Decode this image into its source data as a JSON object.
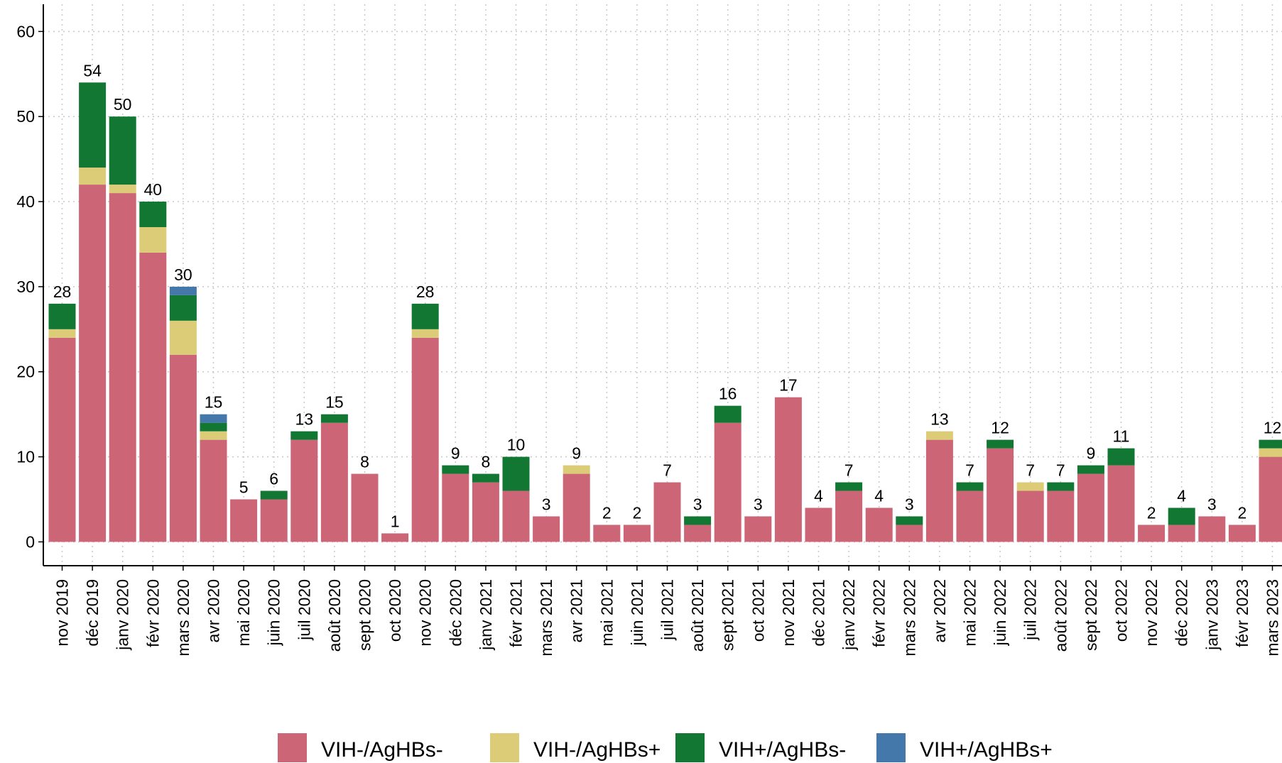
{
  "chart_data": {
    "type": "stacked_bar",
    "categories": [
      "nov 2019",
      "déc 2019",
      "janv 2020",
      "févr 2020",
      "mars 2020",
      "avr 2020",
      "mai 2020",
      "juin 2020",
      "juil 2020",
      "août 2020",
      "sept 2020",
      "oct 2020",
      "nov 2020",
      "déc 2020",
      "janv 2021",
      "févr 2021",
      "mars 2021",
      "avr 2021",
      "mai 2021",
      "juin 2021",
      "juil 2021",
      "août 2021",
      "sept 2021",
      "oct 2021",
      "nov 2021",
      "déc 2021",
      "janv 2022",
      "févr 2022",
      "mars 2022",
      "avr 2022",
      "mai 2022",
      "juin 2022",
      "juil 2022",
      "août 2022",
      "sept 2022",
      "oct 2022",
      "nov 2022",
      "déc 2022",
      "janv 2023",
      "févr 2023",
      "mars 2023"
    ],
    "series": [
      {
        "name": "VIH-/AgHBs-",
        "color": "#cc6677",
        "values": [
          24,
          42,
          41,
          34,
          22,
          12,
          5,
          5,
          12,
          14,
          8,
          1,
          24,
          8,
          7,
          6,
          3,
          8,
          2,
          2,
          7,
          2,
          14,
          3,
          17,
          4,
          6,
          4,
          2,
          12,
          6,
          11,
          6,
          6,
          8,
          9,
          2,
          2,
          3,
          2,
          10
        ]
      },
      {
        "name": "VIH-/AgHBs+",
        "color": "#ddcc77",
        "values": [
          1,
          2,
          1,
          3,
          4,
          1,
          0,
          0,
          0,
          0,
          0,
          0,
          1,
          0,
          0,
          0,
          0,
          1,
          0,
          0,
          0,
          0,
          0,
          0,
          0,
          0,
          0,
          0,
          0,
          1,
          0,
          0,
          1,
          0,
          0,
          0,
          0,
          0,
          0,
          0,
          1
        ]
      },
      {
        "name": "VIH+/AgHBs-",
        "color": "#117733",
        "values": [
          3,
          10,
          8,
          3,
          3,
          1,
          0,
          1,
          1,
          1,
          0,
          0,
          3,
          1,
          1,
          4,
          0,
          0,
          0,
          0,
          0,
          1,
          2,
          0,
          0,
          0,
          1,
          0,
          1,
          0,
          1,
          1,
          0,
          1,
          1,
          2,
          0,
          2,
          0,
          0,
          1
        ]
      },
      {
        "name": "VIH+/AgHBs+",
        "color": "#4477aa",
        "values": [
          0,
          0,
          0,
          0,
          1,
          1,
          0,
          0,
          0,
          0,
          0,
          0,
          0,
          0,
          0,
          0,
          0,
          0,
          0,
          0,
          0,
          0,
          0,
          0,
          0,
          0,
          0,
          0,
          0,
          0,
          0,
          0,
          0,
          0,
          0,
          0,
          0,
          0,
          0,
          0,
          0
        ]
      }
    ],
    "totals": [
      28,
      54,
      50,
      40,
      30,
      15,
      5,
      6,
      13,
      15,
      8,
      1,
      28,
      9,
      8,
      10,
      3,
      9,
      2,
      2,
      7,
      3,
      16,
      3,
      17,
      4,
      7,
      4,
      3,
      13,
      7,
      12,
      7,
      7,
      9,
      11,
      2,
      4,
      3,
      2,
      12
    ],
    "ylim": [
      -2.8,
      63.2
    ],
    "yticks": [
      0,
      10,
      20,
      30,
      40,
      50,
      60
    ],
    "grid": true,
    "legend": "bottom"
  }
}
